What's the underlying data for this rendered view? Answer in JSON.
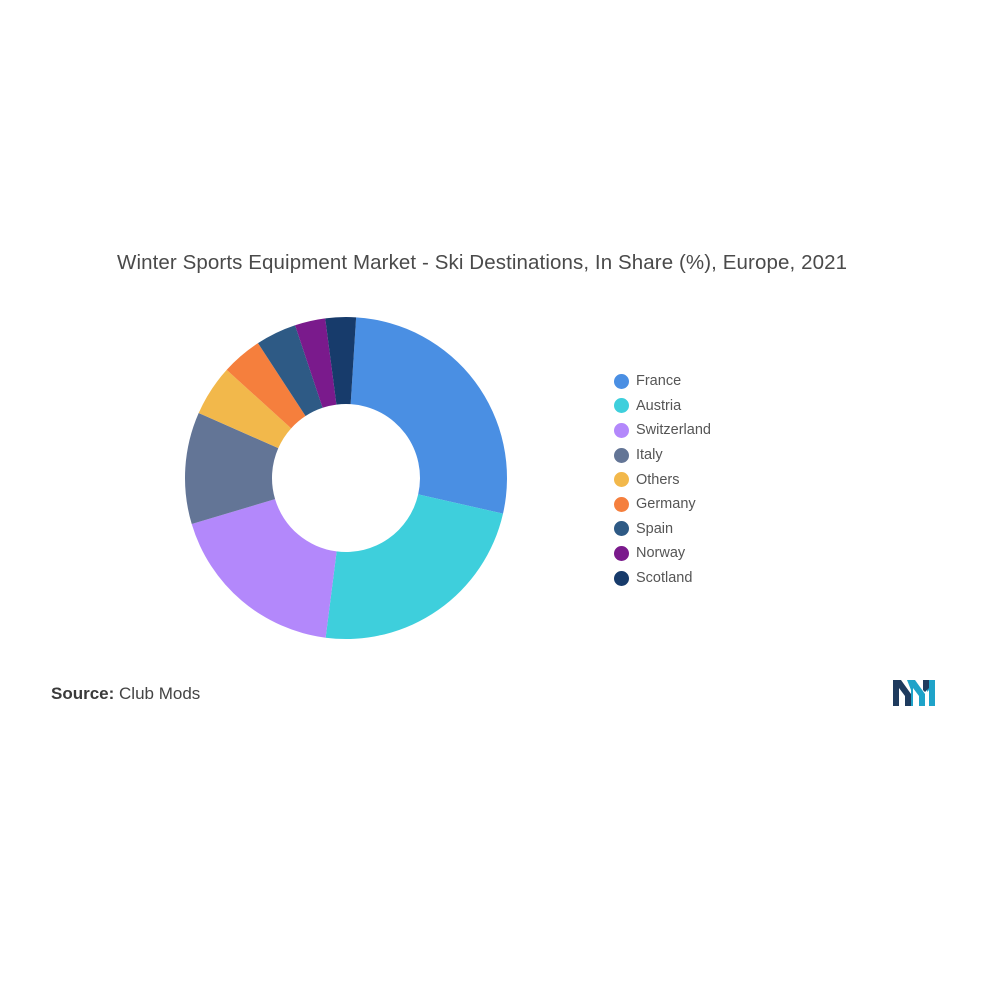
{
  "chart_data": {
    "type": "pie",
    "title": "Winter Sports Equipment Market - Ski Destinations, In Share (%), Europe, 2021",
    "donut": true,
    "legend_position": "right",
    "categories": [
      "France",
      "Austria",
      "Switzerland",
      "Italy",
      "Others",
      "Germany",
      "Spain",
      "Norway",
      "Scotland"
    ],
    "values": [
      27,
      23,
      18,
      11,
      5,
      4,
      4,
      3,
      3
    ],
    "colors": [
      "#4a8fe3",
      "#3ecfdc",
      "#b388fb",
      "#637596",
      "#f2b84b",
      "#f57f3d",
      "#2e5a85",
      "#7a1a8c",
      "#173b6b"
    ]
  },
  "source": {
    "label": "Source:",
    "text": "Club Mods"
  },
  "logo": {
    "icon": "mordor-intelligence-logo-icon",
    "colors": [
      "#1fa3c9",
      "#1e3b5e"
    ]
  }
}
